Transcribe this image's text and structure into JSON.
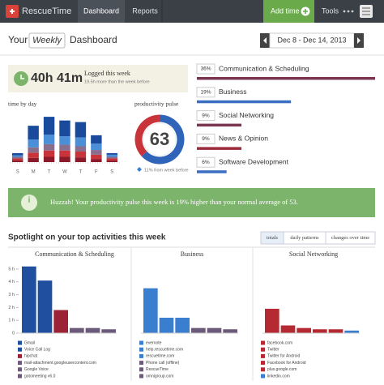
{
  "nav": {
    "logo": "RescueTime",
    "items": [
      "Dashboard",
      "Reports"
    ],
    "add_time": "Add time",
    "tools": "Tools"
  },
  "header": {
    "your": "Your",
    "period": "Weekly",
    "dashboard": "Dashboard",
    "date_range": "Dec 8 - Dec 14, 2013"
  },
  "summary": {
    "time_logged": "40h 41m",
    "logged_label": "Logged this week",
    "comparison": "19.5h more than the week before"
  },
  "pulse": {
    "title": "productivity pulse",
    "value": 63,
    "change": "11% from week before"
  },
  "banner": "Huzzah! Your productivity pulse this week is 19% higher than your normal average of 53.",
  "spotlight": {
    "title": "Spotlight on your top activities this week",
    "tabs": [
      "totals",
      "daily patterns",
      "changes over time"
    ]
  },
  "chart_data": [
    {
      "type": "bar",
      "stacked": true,
      "title": "time by day",
      "categories": [
        "S",
        "M",
        "T",
        "W",
        "T",
        "F",
        "S"
      ],
      "ylim": [
        0,
        10
      ],
      "series": [
        {
          "color": "#8b1a2a",
          "values": [
            0.3,
            0.8,
            1.0,
            1.0,
            0.9,
            0.6,
            0.3
          ]
        },
        {
          "color": "#c8343a",
          "values": [
            0.4,
            1.0,
            1.2,
            1.2,
            1.1,
            0.8,
            0.4
          ]
        },
        {
          "color": "#8a6e8e",
          "values": [
            0.3,
            1.0,
            1.2,
            1.1,
            1.0,
            0.9,
            0.3
          ]
        },
        {
          "color": "#4a8fd8",
          "values": [
            0.3,
            1.5,
            1.8,
            1.6,
            1.7,
            1.2,
            0.4
          ]
        },
        {
          "color": "#1a4a9c",
          "values": [
            0.4,
            2.6,
            3.4,
            3.0,
            2.9,
            1.6,
            0.3
          ]
        }
      ]
    },
    {
      "type": "bar",
      "orientation": "horizontal",
      "categories": [
        "Communication & Scheduling",
        "Business",
        "Social Networking",
        "News & Opinion",
        "Software Development"
      ],
      "values": [
        36,
        19,
        9,
        9,
        6
      ],
      "value_labels": [
        "36%",
        "19%",
        "9%",
        "9%",
        "6%"
      ],
      "colors": [
        "#7a3650",
        "#3a6ec0",
        "#7a3650",
        "#9b2c3c",
        "#3a6ec0"
      ],
      "xlim": [
        0,
        36
      ]
    },
    {
      "type": "bar",
      "title": "Communication & Scheduling",
      "categories": [
        "Gmail",
        "Voice Call Log",
        "hipchat",
        "mail-attachment.googleusercontent.com",
        "Google Voice",
        "gotomeeting v6.0"
      ],
      "values": [
        5.2,
        4.1,
        1.8,
        0.4,
        0.4,
        0.3
      ],
      "colors": [
        "#1f4f9e",
        "#1f4f9e",
        "#9b2335",
        "#6b5a7a",
        "#6b5a7a",
        "#6b5a7a"
      ],
      "ylim": [
        0,
        5.5
      ],
      "yticks": [
        0,
        {
          "value": 1,
          "label": "1 h"
        },
        {
          "value": 2,
          "label": "2 h"
        },
        {
          "value": 3,
          "label": "3 h"
        },
        {
          "value": 4,
          "label": "4 h"
        },
        {
          "value": 5,
          "label": "5 h"
        }
      ]
    },
    {
      "type": "bar",
      "title": "Business",
      "categories": [
        "evernote",
        "help.rescuetime.com",
        "rescuetime.com",
        "Phone call (offline)",
        "RescueTime",
        "omnigroup.com"
      ],
      "values": [
        3.5,
        1.2,
        1.2,
        0.4,
        0.4,
        0.3
      ],
      "colors": [
        "#3a7ed0",
        "#3a7ed0",
        "#3a7ed0",
        "#6b5a7a",
        "#6b5a7a",
        "#6b5a7a"
      ],
      "ylim": [
        0,
        5.5
      ]
    },
    {
      "type": "bar",
      "title": "Social Networking",
      "categories": [
        "facebook.com",
        "Twitter",
        "Twitter for Android",
        "Facebook for Android",
        "plus.google.com",
        "linkedin.com"
      ],
      "values": [
        1.9,
        0.6,
        0.4,
        0.3,
        0.3,
        0.2
      ],
      "colors": [
        "#b52a32",
        "#b52a32",
        "#b52a32",
        "#b52a32",
        "#b52a32",
        "#3a7ed0"
      ],
      "ylim": [
        0,
        5.5
      ]
    }
  ]
}
